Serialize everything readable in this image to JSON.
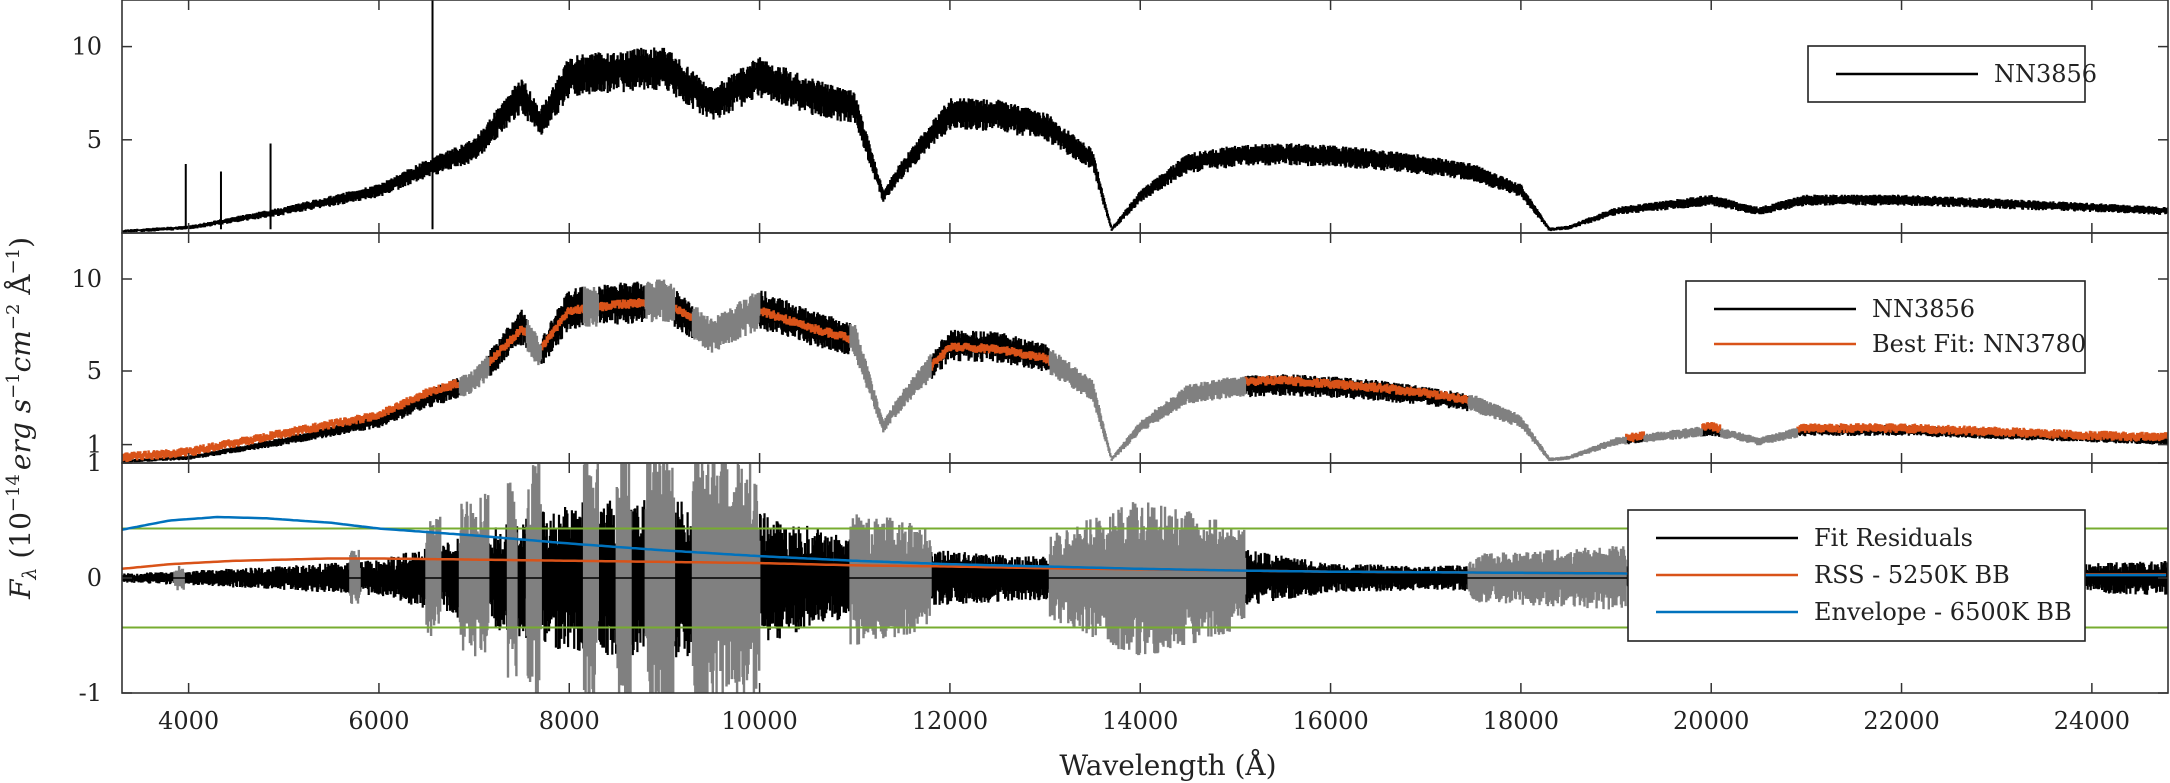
{
  "figure": {
    "xlabel": "Wavelength (Å)",
    "ylabel": "F_λ (10^−14 erg s^−1 cm^−2 Å^−1)",
    "ylabel_parts": {
      "F": "F",
      "lambda": "λ",
      "open": " (10",
      "exp1": "−14",
      "erg": "erg s",
      "exp2": "−1",
      "cm": "cm",
      "exp3": "−2",
      "A": " Å",
      "exp4": "−1",
      "close": ")"
    },
    "x_ticks": [
      "4000",
      "6000",
      "8000",
      "10000",
      "12000",
      "14000",
      "16000",
      "18000",
      "20000",
      "22000",
      "24000"
    ],
    "colors": {
      "spectrum": "#000000",
      "best_fit": "#d95319",
      "masked": "#808080",
      "rss_bb": "#d95319",
      "envelope_bb": "#0072bd",
      "threshold": "#77ac30"
    }
  },
  "chart_data": [
    {
      "type": "line",
      "panel": "top",
      "xlim": [
        3300,
        24800
      ],
      "ylim": [
        0,
        12.5
      ],
      "y_ticks": [
        "5",
        "10"
      ],
      "grid": false,
      "legend_position": "top-right",
      "series": [
        {
          "name": "NN3856",
          "color": "#000000",
          "x": [
            3300,
            4000,
            5000,
            6000,
            6500,
            7000,
            7500,
            7700,
            8000,
            8500,
            9000,
            9500,
            10000,
            10500,
            11000,
            11300,
            11500,
            12000,
            12500,
            13000,
            13500,
            13700,
            14000,
            14500,
            15000,
            15500,
            16000,
            16500,
            17000,
            17500,
            18000,
            18300,
            18500,
            19000,
            19500,
            20000,
            20500,
            21000,
            22000,
            23000,
            24000,
            24800
          ],
          "y": [
            0.1,
            0.3,
            1.2,
            2.3,
            3.5,
            4.5,
            7.5,
            6.0,
            8.5,
            8.8,
            9.0,
            7.0,
            8.5,
            7.5,
            6.8,
            2.0,
            3.5,
            6.5,
            6.4,
            5.8,
            4.0,
            0.2,
            2.0,
            3.8,
            4.2,
            4.3,
            4.2,
            4.0,
            3.7,
            3.3,
            2.3,
            0.2,
            0.3,
            1.2,
            1.5,
            1.8,
            1.2,
            1.8,
            1.8,
            1.6,
            1.4,
            1.2
          ]
        }
      ],
      "spikes": [
        {
          "x": 6563,
          "y": 12.5
        },
        {
          "x": 3970,
          "y": 3.7
        },
        {
          "x": 4340,
          "y": 3.3
        },
        {
          "x": 4861,
          "y": 4.8
        }
      ]
    },
    {
      "type": "line",
      "panel": "middle",
      "xlim": [
        3300,
        24800
      ],
      "ylim": [
        0,
        12.5
      ],
      "y_ticks": [
        "1",
        "5",
        "10"
      ],
      "grid": false,
      "legend_position": "top-right",
      "series": [
        {
          "name": "NN3856",
          "color": "#000000",
          "x": [
            3300,
            4000,
            5000,
            6000,
            6500,
            7000,
            7500,
            7700,
            8000,
            8500,
            9000,
            9500,
            10000,
            10500,
            11000,
            11300,
            11500,
            12000,
            12500,
            13000,
            13500,
            13700,
            14000,
            14500,
            15000,
            15500,
            16000,
            16500,
            17000,
            17500,
            18000,
            18300,
            18500,
            19000,
            19500,
            20000,
            20500,
            21000,
            22000,
            23000,
            24000,
            24800
          ],
          "y": [
            0.1,
            0.3,
            1.2,
            2.3,
            3.5,
            4.5,
            7.5,
            6.0,
            8.5,
            8.8,
            9.0,
            7.0,
            8.5,
            7.5,
            6.8,
            2.0,
            3.5,
            6.5,
            6.4,
            5.8,
            4.0,
            0.2,
            2.0,
            3.8,
            4.2,
            4.3,
            4.2,
            4.0,
            3.7,
            3.3,
            2.3,
            0.2,
            0.3,
            1.2,
            1.5,
            1.8,
            1.2,
            1.8,
            1.8,
            1.6,
            1.4,
            1.2
          ]
        },
        {
          "name": "Best Fit: NN3780",
          "color": "#d95319",
          "x": [
            3300,
            4000,
            5000,
            6000,
            6500,
            7000,
            7500,
            7700,
            8000,
            8500,
            9000,
            9500,
            10000,
            10500,
            11000,
            11300,
            11500,
            12000,
            12500,
            13000,
            13500,
            13700,
            14000,
            14500,
            15000,
            15500,
            16000,
            16500,
            17000,
            17500,
            18000,
            18300,
            18500,
            19000,
            19500,
            20000,
            20500,
            21000,
            22000,
            23000,
            24000,
            24800
          ],
          "y": [
            0.3,
            0.6,
            1.6,
            2.6,
            3.8,
            4.6,
            7.3,
            6.2,
            8.3,
            8.6,
            8.8,
            7.2,
            8.3,
            7.4,
            6.7,
            2.2,
            3.6,
            6.3,
            6.2,
            5.7,
            4.1,
            0.4,
            2.1,
            3.9,
            4.4,
            4.5,
            4.3,
            4.1,
            3.8,
            3.4,
            2.4,
            0.4,
            0.4,
            1.3,
            1.6,
            2.0,
            1.3,
            1.9,
            1.9,
            1.7,
            1.5,
            1.4
          ]
        }
      ],
      "masked_ranges": [
        [
          6850,
          7150
        ],
        [
          7550,
          7700
        ],
        [
          8150,
          8300
        ],
        [
          8800,
          9100
        ],
        [
          9300,
          10000
        ],
        [
          10950,
          11800
        ],
        [
          13050,
          15100
        ],
        [
          17450,
          19100
        ],
        [
          19300,
          19900
        ],
        [
          20100,
          20900
        ]
      ]
    },
    {
      "type": "line",
      "panel": "bottom",
      "xlim": [
        3300,
        24800
      ],
      "ylim": [
        -1,
        1
      ],
      "y_ticks": [
        "-1",
        "0",
        "1"
      ],
      "grid": false,
      "legend_position": "right",
      "threshold_lines": [
        0.43,
        -0.43
      ],
      "series": [
        {
          "name": "Fit Residuals",
          "color": "#000000",
          "amplitude_x": [
            3300,
            4000,
            5000,
            6000,
            7000,
            8000,
            9000,
            10000,
            11000,
            12000,
            13000,
            14000,
            15000,
            16000,
            17000,
            18000,
            19000,
            20000,
            21000,
            22000,
            23000,
            24000,
            24800
          ],
          "amplitude_y": [
            0.03,
            0.05,
            0.08,
            0.12,
            0.3,
            0.5,
            0.55,
            0.45,
            0.25,
            0.18,
            0.15,
            0.3,
            0.2,
            0.1,
            0.08,
            0.1,
            0.12,
            0.1,
            0.08,
            0.06,
            0.08,
            0.1,
            0.12
          ]
        },
        {
          "name": "RSS - 5250K BB",
          "color": "#d95319",
          "x": [
            3300,
            3800,
            4500,
            5000,
            5500,
            6000,
            7000,
            8000,
            9000,
            10000,
            11000,
            12000,
            13000,
            14000,
            15000,
            16000,
            18000,
            20000,
            22000,
            24000,
            24800
          ],
          "y": [
            0.08,
            0.12,
            0.15,
            0.16,
            0.17,
            0.17,
            0.16,
            0.15,
            0.14,
            0.13,
            0.11,
            0.1,
            0.085,
            0.075,
            0.065,
            0.055,
            0.045,
            0.04,
            0.035,
            0.03,
            0.03
          ]
        },
        {
          "name": "Envelope - 6500K BB",
          "color": "#0072bd",
          "x": [
            3300,
            3800,
            4300,
            4800,
            5500,
            6000,
            7000,
            8000,
            9000,
            10000,
            11000,
            12000,
            13000,
            14000,
            15000,
            16000,
            18000,
            20000,
            22000,
            24000,
            24800
          ],
          "y": [
            0.42,
            0.5,
            0.53,
            0.52,
            0.48,
            0.43,
            0.37,
            0.3,
            0.24,
            0.19,
            0.15,
            0.12,
            0.1,
            0.08,
            0.065,
            0.055,
            0.045,
            0.035,
            0.03,
            0.025,
            0.025
          ]
        }
      ],
      "masked_ranges": [
        [
          3850,
          3950
        ],
        [
          5700,
          5800
        ],
        [
          6500,
          6650
        ],
        [
          6850,
          7150
        ],
        [
          7350,
          7450
        ],
        [
          7550,
          7700
        ],
        [
          8150,
          8300
        ],
        [
          8500,
          8650
        ],
        [
          8800,
          9100
        ],
        [
          9300,
          10000
        ],
        [
          10950,
          11800
        ],
        [
          13050,
          15100
        ],
        [
          17450,
          19100
        ]
      ]
    }
  ]
}
